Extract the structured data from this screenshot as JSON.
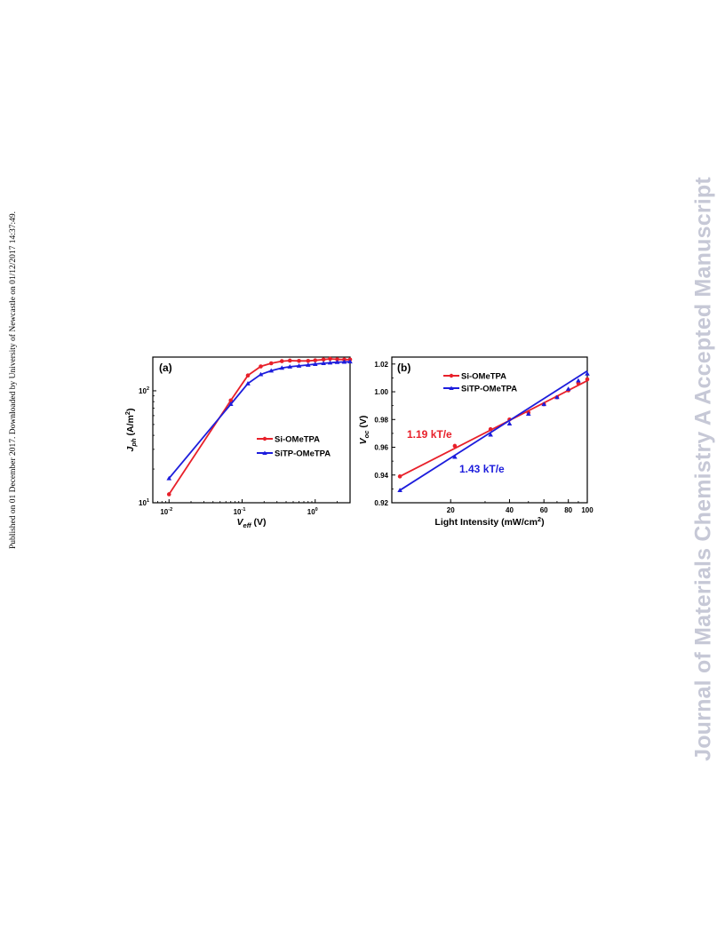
{
  "side_note": "Published on 01 December 2017. Downloaded by University of Newcastle on 01/12/2017 14:37:49.",
  "watermark": "Journal of Materials Chemistry A Accepted Manuscript",
  "colors": {
    "series1": "#e8202a",
    "series2": "#1d1ddc"
  },
  "chart_data": [
    {
      "type": "line",
      "panel_label": "(a)",
      "xlabel_main": "V",
      "xlabel_sub": "eff",
      "xlabel_tail": " (V)",
      "ylabel_main": "J",
      "ylabel_sub": "ph",
      "ylabel_tail": " (A/m",
      "ylabel_sup": "2",
      "ylabel_close": ")",
      "xscale": "log",
      "yscale": "log",
      "xlim": [
        0.006,
        3
      ],
      "ylim": [
        10,
        200
      ],
      "x_ticks": [
        {
          "base": "10",
          "exp": "-2",
          "value": 0.01
        },
        {
          "base": "10",
          "exp": "-1",
          "value": 0.1
        },
        {
          "base": "10",
          "exp": "0",
          "value": 1
        }
      ],
      "y_ticks": [
        {
          "base": "10",
          "exp": "1",
          "value": 10
        },
        {
          "base": "10",
          "exp": "2",
          "value": 100
        }
      ],
      "legend_position": "center-right",
      "series": [
        {
          "name": "Si-OMeTPA",
          "color": "#e8202a",
          "marker": "circle",
          "x": [
            0.01,
            0.07,
            0.12,
            0.18,
            0.25,
            0.35,
            0.45,
            0.6,
            0.8,
            1.0,
            1.3,
            1.6,
            2.0,
            2.5,
            3.0
          ],
          "y": [
            11.9,
            82,
            137,
            165,
            176,
            184,
            186,
            185,
            185,
            187,
            190,
            193,
            191,
            190,
            190
          ]
        },
        {
          "name": "SiTP-OMeTPA",
          "color": "#1d1ddc",
          "marker": "triangle",
          "x": [
            0.01,
            0.07,
            0.12,
            0.18,
            0.25,
            0.35,
            0.45,
            0.6,
            0.8,
            1.0,
            1.3,
            1.6,
            2.0,
            2.5,
            3.0
          ],
          "y": [
            16.5,
            76,
            116,
            140,
            151,
            160,
            164,
            167,
            170,
            173,
            176,
            178,
            180,
            181,
            182
          ]
        }
      ]
    },
    {
      "type": "scatter",
      "panel_label": "(b)",
      "xlabel": "Light Intensity (mW/cm",
      "xlabel_sup": "2",
      "xlabel_close": ")",
      "ylabel_main": "V",
      "ylabel_sub": "oc",
      "ylabel_tail": " (V)",
      "xscale": "log",
      "xlim": [
        10,
        100
      ],
      "ylim": [
        0.92,
        1.025
      ],
      "x_ticks": [
        {
          "label": "20",
          "value": 20
        },
        {
          "label": "40",
          "value": 40
        },
        {
          "label": "60",
          "value": 60
        },
        {
          "label": "80",
          "value": 80
        },
        {
          "label": "100",
          "value": 100
        }
      ],
      "y_ticks": [
        {
          "label": "0.92",
          "value": 0.92
        },
        {
          "label": "0.94",
          "value": 0.94
        },
        {
          "label": "0.96",
          "value": 0.96
        },
        {
          "label": "0.98",
          "value": 0.98
        },
        {
          "label": "1.00",
          "value": 1.0
        },
        {
          "label": "1.02",
          "value": 1.02
        }
      ],
      "legend_position": "top-center",
      "series": [
        {
          "name": "Si-OMeTPA",
          "color": "#e8202a",
          "marker": "circle",
          "annotation": "1.19 kT/e",
          "x": [
            11,
            21,
            32,
            40,
            50,
            60,
            70,
            80,
            90,
            100
          ],
          "y": [
            0.939,
            0.961,
            0.973,
            0.98,
            0.985,
            0.991,
            0.996,
            1.001,
            1.006,
            1.009
          ],
          "fit": {
            "x": [
              11,
              100
            ],
            "y": [
              0.939,
              1.008
            ]
          }
        },
        {
          "name": "SiTP-OMeTPA",
          "color": "#1d1ddc",
          "marker": "triangle",
          "annotation": "1.43 kT/e",
          "x": [
            11,
            21,
            32,
            40,
            50,
            60,
            70,
            80,
            90,
            100
          ],
          "y": [
            0.929,
            0.953,
            0.969,
            0.977,
            0.984,
            0.991,
            0.996,
            1.002,
            1.008,
            1.013
          ],
          "fit": {
            "x": [
              11,
              100
            ],
            "y": [
              0.929,
              1.015
            ]
          }
        }
      ]
    }
  ]
}
